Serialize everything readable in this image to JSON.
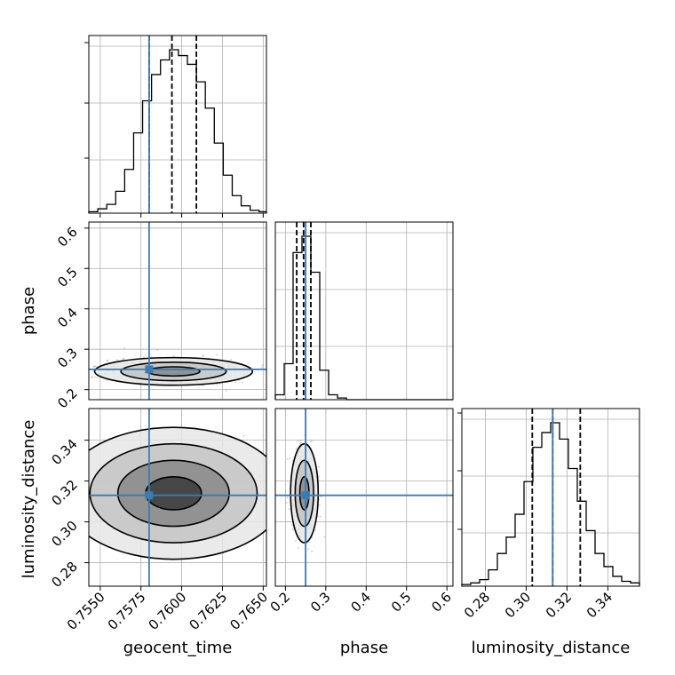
{
  "chart_data": {
    "type": "corner",
    "parameters": [
      "geocent_time",
      "phase",
      "luminosity_distance"
    ],
    "truth": {
      "geocent_time": 0.758,
      "phase": 0.25,
      "luminosity_distance": 0.313
    },
    "colors": {
      "truth": "#3a7ab5",
      "hist": "#000000",
      "grid": "#b0b0b0"
    },
    "grid": true,
    "axes": {
      "geocent_time": {
        "lim": [
          0.7543,
          0.7652
        ],
        "ticks": [
          0.755,
          0.7575,
          0.76,
          0.7625,
          0.765
        ],
        "tick_labels": [
          "0.7550",
          "0.7575",
          "0.7600",
          "0.7625",
          "0.7650"
        ]
      },
      "phase": {
        "lim": [
          0.175,
          0.615
        ],
        "ticks": [
          0.2,
          0.3,
          0.4,
          0.5,
          0.6
        ],
        "tick_labels": [
          "0.2",
          "0.3",
          "0.4",
          "0.5",
          "0.6"
        ]
      },
      "luminosity_distance": {
        "lim": [
          0.2685,
          0.3555
        ],
        "ticks": [
          0.28,
          0.3,
          0.32,
          0.34
        ],
        "tick_labels": [
          "0.28",
          "0.30",
          "0.32",
          "0.34"
        ]
      }
    },
    "histograms": [
      {
        "parameter": "geocent_time",
        "bin_edges": [
          0.7543,
          0.75485,
          0.7554,
          0.75595,
          0.7565,
          0.75705,
          0.7576,
          0.75815,
          0.7587,
          0.75925,
          0.7598,
          0.76035,
          0.7609,
          0.76145,
          0.762,
          0.76255,
          0.7631,
          0.76365,
          0.7642,
          0.76475,
          0.7652
        ],
        "counts": [
          1,
          3,
          6,
          15,
          30,
          55,
          77,
          95,
          105,
          112,
          108,
          102,
          90,
          72,
          48,
          26,
          12,
          5,
          2,
          1
        ],
        "quantiles": [
          0.758,
          0.7594,
          0.7609
        ]
      },
      {
        "parameter": "phase",
        "bin_edges": [
          0.175,
          0.197,
          0.219,
          0.241,
          0.263,
          0.285,
          0.307,
          0.329,
          0.351,
          0.373,
          0.395,
          0.417,
          0.439,
          0.461,
          0.483,
          0.505,
          0.527,
          0.549,
          0.571,
          0.593,
          0.615
        ],
        "counts": [
          3,
          22,
          90,
          100,
          78,
          18,
          3,
          1,
          0,
          0,
          0,
          0,
          0,
          0,
          0,
          0,
          0,
          0,
          0,
          0
        ],
        "quantiles": [
          0.228,
          0.245,
          0.263
        ]
      },
      {
        "parameter": "luminosity_distance",
        "bin_edges": [
          0.2685,
          0.27285,
          0.2772,
          0.28155,
          0.2859,
          0.29025,
          0.2946,
          0.29895,
          0.3033,
          0.30765,
          0.312,
          0.31635,
          0.3207,
          0.32505,
          0.3294,
          0.33375,
          0.3381,
          0.34245,
          0.3468,
          0.35115,
          0.3555
        ],
        "counts": [
          1,
          2,
          4,
          10,
          20,
          30,
          44,
          64,
          85,
          94,
          100,
          90,
          72,
          52,
          34,
          20,
          12,
          6,
          3,
          2
        ],
        "quantiles": [
          0.303,
          0.313,
          0.3265
        ]
      }
    ],
    "joint": [
      {
        "x": "geocent_time",
        "y": "phase",
        "center": [
          0.7595,
          0.245
        ],
        "sigma": [
          0.0017,
          0.012
        ],
        "contour_levels": [
          "1-sigma",
          "2-sigma",
          "3-sigma"
        ]
      },
      {
        "x": "geocent_time",
        "y": "luminosity_distance",
        "center": [
          0.7595,
          0.314
        ],
        "sigma": [
          0.0018,
          0.0085
        ],
        "contour_levels": [
          "1-sigma",
          "2-sigma",
          "3-sigma",
          "4-sigma"
        ]
      },
      {
        "x": "phase",
        "y": "luminosity_distance",
        "center": [
          0.247,
          0.314
        ],
        "sigma": [
          0.012,
          0.0085
        ],
        "contour_levels": [
          "1-sigma",
          "2-sigma",
          "3-sigma"
        ]
      }
    ]
  }
}
